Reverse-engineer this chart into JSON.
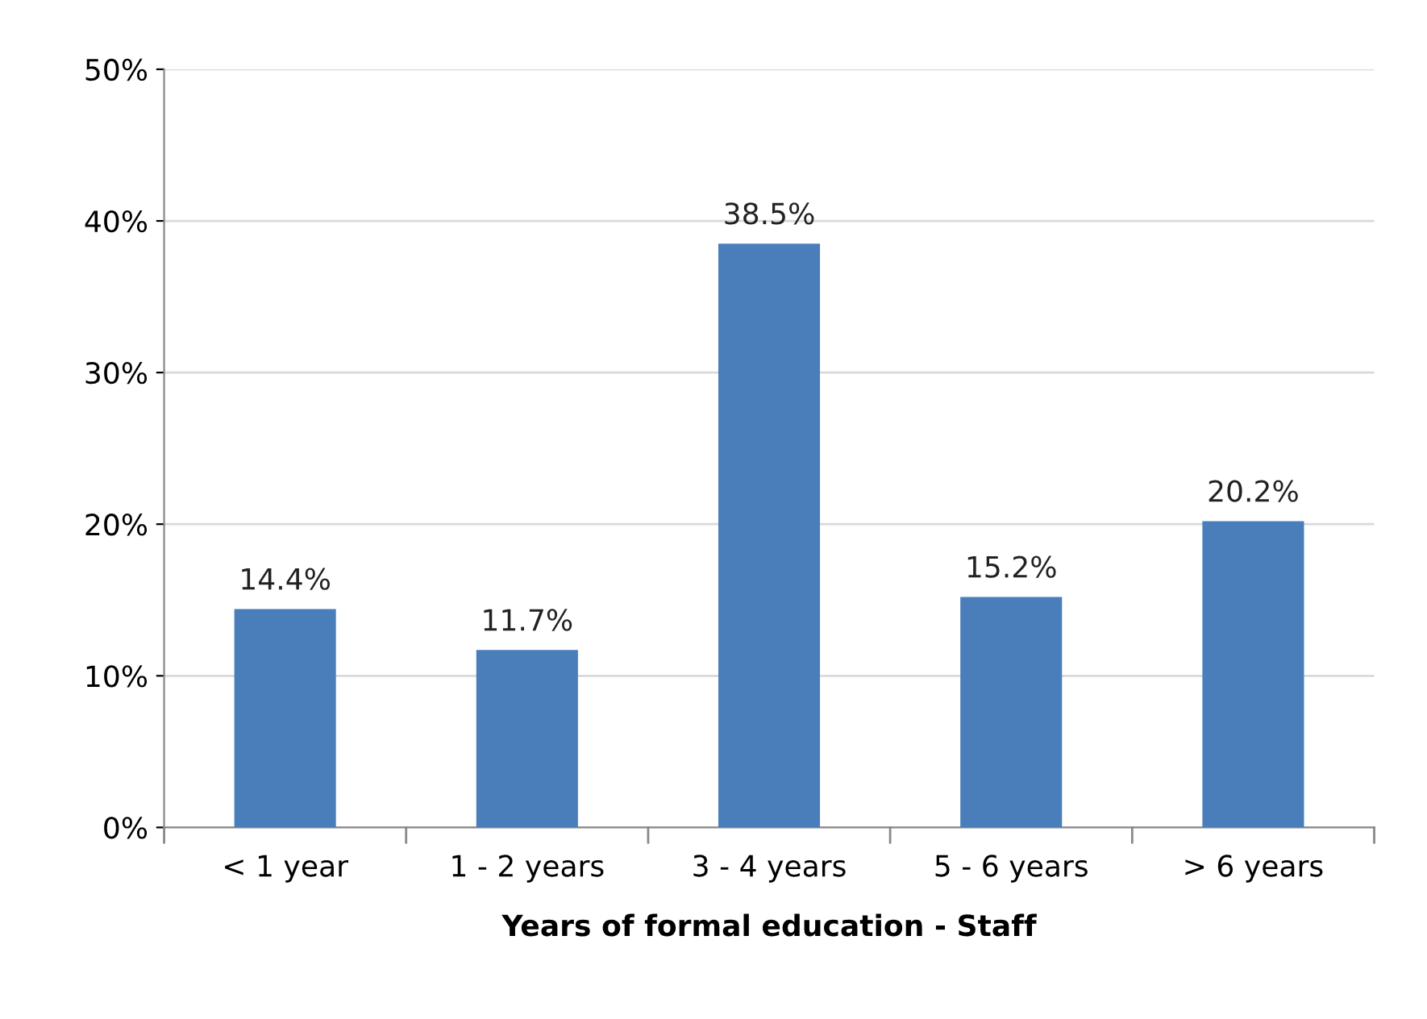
{
  "chart_data": {
    "type": "bar",
    "xlabel": "Years of formal education - Staff",
    "categories": [
      "< 1 year",
      "1 - 2 years",
      "3 - 4 years",
      "5 - 6 years",
      "> 6 years"
    ],
    "values": [
      14.4,
      11.7,
      38.5,
      15.2,
      20.2
    ],
    "value_labels": [
      "14.4%",
      "11.7%",
      "38.5%",
      "15.2%",
      "20.2%"
    ],
    "color": "#4a7ebb",
    "ylim": [
      0,
      50
    ],
    "yticks": [
      {
        "value": 0,
        "label": "0%"
      },
      {
        "value": 10,
        "label": "10%"
      },
      {
        "value": 20,
        "label": "20%"
      },
      {
        "value": 30,
        "label": "30%"
      },
      {
        "value": 40,
        "label": "40%"
      },
      {
        "value": 50,
        "label": "50%"
      }
    ],
    "grid": "y",
    "legend": false
  }
}
